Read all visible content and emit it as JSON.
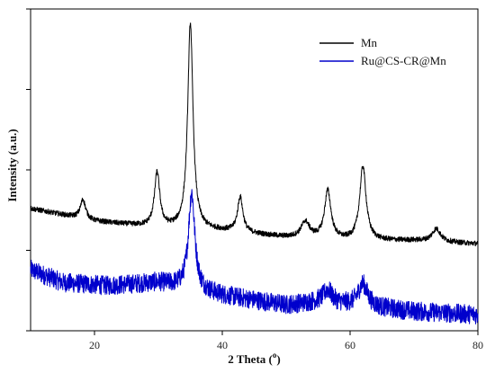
{
  "chart_data": {
    "type": "line",
    "xlabel": "2 Theta (",
    "xlabel_superscript": "o",
    "xlabel_suffix": ")",
    "ylabel": "Intensity (a.u.)",
    "xlim": [
      10,
      80
    ],
    "ylim": [
      0,
      100
    ],
    "x_ticks": [
      20,
      40,
      60,
      80
    ],
    "y_tick_labels_shown": false,
    "grid": false,
    "legend_position": "top-right",
    "series": [
      {
        "name": "Mn",
        "color": "#000000",
        "baseline": [
          [
            10,
            38
          ],
          [
            20,
            34
          ],
          [
            30,
            32
          ],
          [
            40,
            31
          ],
          [
            50,
            29
          ],
          [
            60,
            28
          ],
          [
            70,
            28
          ],
          [
            80,
            27
          ]
        ],
        "peaks": [
          {
            "x": 18.2,
            "height": 6,
            "width": 0.5
          },
          {
            "x": 29.8,
            "height": 17,
            "width": 0.5
          },
          {
            "x": 35.0,
            "height": 64,
            "width": 0.5
          },
          {
            "x": 42.8,
            "height": 11,
            "width": 0.5
          },
          {
            "x": 53.0,
            "height": 5,
            "width": 0.8
          },
          {
            "x": 56.5,
            "height": 15,
            "width": 0.6
          },
          {
            "x": 62.0,
            "height": 23,
            "width": 0.6
          },
          {
            "x": 73.5,
            "height": 4,
            "width": 0.8
          }
        ],
        "noise": 0.8
      },
      {
        "name": "Ru@CS-CR@Mn",
        "color": "#0000cc",
        "baseline": [
          [
            10,
            19
          ],
          [
            15,
            15
          ],
          [
            22,
            14
          ],
          [
            30,
            15
          ],
          [
            40,
            11
          ],
          [
            50,
            8
          ],
          [
            55,
            9
          ],
          [
            60,
            8
          ],
          [
            65,
            7
          ],
          [
            70,
            6
          ],
          [
            80,
            5
          ]
        ],
        "peaks": [
          {
            "x": 35.2,
            "height": 30,
            "width": 0.6
          },
          {
            "x": 56.5,
            "height": 4,
            "width": 0.8
          },
          {
            "x": 62.0,
            "height": 7,
            "width": 0.9
          }
        ],
        "noise": 3.0
      }
    ]
  }
}
